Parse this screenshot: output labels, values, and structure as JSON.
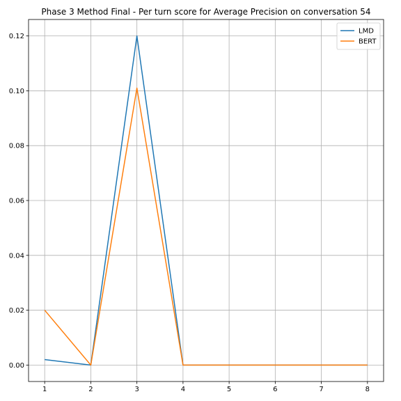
{
  "chart_data": {
    "type": "line",
    "title": "Phase 3 Method Final - Per turn score for Average Precision on conversation 54",
    "xlabel": "",
    "ylabel": "",
    "x": [
      1,
      2,
      3,
      4,
      5,
      6,
      7,
      8
    ],
    "xlim": [
      0.65,
      8.35
    ],
    "ylim": [
      -0.006,
      0.126
    ],
    "xticks": [
      1,
      2,
      3,
      4,
      5,
      6,
      7,
      8
    ],
    "yticks": [
      0.0,
      0.02,
      0.04,
      0.06,
      0.08,
      0.1,
      0.12
    ],
    "ytick_labels": [
      "0.00",
      "0.02",
      "0.04",
      "0.06",
      "0.08",
      "0.10",
      "0.12"
    ],
    "grid": true,
    "legend_position": "top-right",
    "series": [
      {
        "name": "LMD",
        "color": "#1f77b4",
        "values": [
          0.002,
          0.0,
          0.12,
          0.0,
          0.0,
          0.0,
          0.0,
          0.0
        ]
      },
      {
        "name": "BERT",
        "color": "#ff7f0e",
        "values": [
          0.02,
          0.0,
          0.101,
          0.0,
          0.0,
          0.0,
          0.0,
          0.0
        ]
      }
    ]
  }
}
